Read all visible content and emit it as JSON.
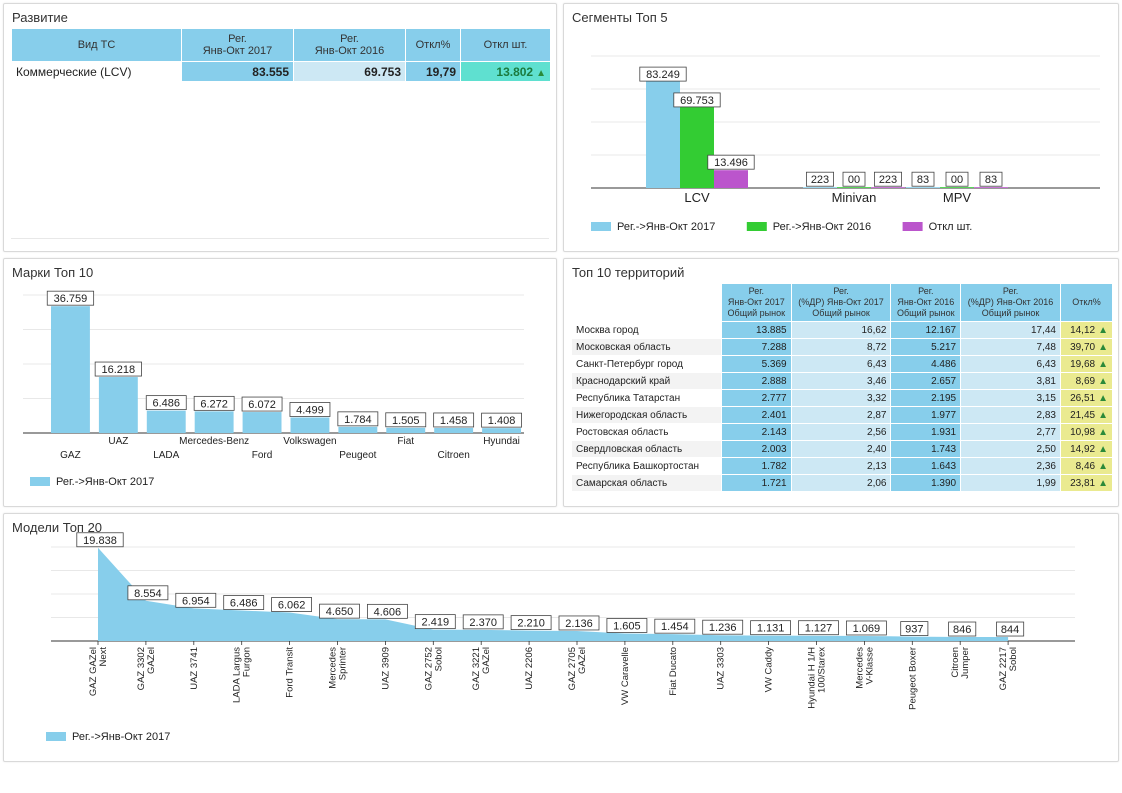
{
  "panels": {
    "razvitie": "Развитие",
    "segments": "Сегменты Топ 5",
    "brands": "Марки Топ 10",
    "territories": "Топ 10 территорий",
    "models": "Модели Топ 20"
  },
  "razvitie_table": {
    "headers": [
      "Вид ТС",
      "Рег.\nЯнв-Окт 2017",
      "Рег.\nЯнв-Окт 2016",
      "Откл%",
      "Откл шт."
    ],
    "rows": [
      {
        "name": "Коммерческие (LCV)",
        "v2017": "83.555",
        "v2016": "69.753",
        "pct": "19,79",
        "diff": "13.802"
      }
    ]
  },
  "territories_table": {
    "headers": [
      "",
      "Рег.\nЯнв-Окт 2017\nОбщий рынок",
      "Рег.\n(%ДР) Янв-Окт 2017\nОбщий рынок",
      "Рег.\nЯнв-Окт 2016\nОбщий рынок",
      "Рег.\n(%ДР) Янв-Окт 2016\nОбщий рынок",
      "Откл%"
    ],
    "rows": [
      {
        "name": "Москва город",
        "a": "13.885",
        "b": "16,62",
        "c": "12.167",
        "d": "17,44",
        "e": "14,12"
      },
      {
        "name": "Московская область",
        "a": "7.288",
        "b": "8,72",
        "c": "5.217",
        "d": "7,48",
        "e": "39,70"
      },
      {
        "name": "Санкт-Петербург город",
        "a": "5.369",
        "b": "6,43",
        "c": "4.486",
        "d": "6,43",
        "e": "19,68"
      },
      {
        "name": "Краснодарский край",
        "a": "2.888",
        "b": "3,46",
        "c": "2.657",
        "d": "3,81",
        "e": "8,69"
      },
      {
        "name": "Республика Татарстан",
        "a": "2.777",
        "b": "3,32",
        "c": "2.195",
        "d": "3,15",
        "e": "26,51"
      },
      {
        "name": "Нижегородская область",
        "a": "2.401",
        "b": "2,87",
        "c": "1.977",
        "d": "2,83",
        "e": "21,45"
      },
      {
        "name": "Ростовская область",
        "a": "2.143",
        "b": "2,56",
        "c": "1.931",
        "d": "2,77",
        "e": "10,98"
      },
      {
        "name": "Свердловская область",
        "a": "2.003",
        "b": "2,40",
        "c": "1.743",
        "d": "2,50",
        "e": "14,92"
      },
      {
        "name": "Республика Башкортостан",
        "a": "1.782",
        "b": "2,13",
        "c": "1.643",
        "d": "2,36",
        "e": "8,46"
      },
      {
        "name": "Самарская область",
        "a": "1.721",
        "b": "2,06",
        "c": "1.390",
        "d": "1,99",
        "e": "23,81"
      }
    ]
  },
  "colors": {
    "blue": "#87ceeb",
    "green": "#33cc33",
    "purple": "#bb55cc",
    "teal": "#5fe0d0",
    "yellow": "#eaea90",
    "light": "#cde8f4"
  },
  "chart_data": [
    {
      "type": "bar",
      "categories": [
        "LCV",
        "Minivan",
        "MPV"
      ],
      "series": [
        {
          "name": "Рег.->Янв-Окт 2017",
          "values": [
            83249,
            223,
            83
          ],
          "labels": [
            "83.249",
            "223",
            "83"
          ]
        },
        {
          "name": "Рег.->Янв-Окт 2016",
          "values": [
            69753,
            0,
            0
          ],
          "labels": [
            "69.753",
            "00",
            "00"
          ]
        },
        {
          "name": "Откл шт.",
          "values": [
            13496,
            223,
            83
          ],
          "labels": [
            "13.496",
            "223",
            "83"
          ]
        }
      ],
      "ylim": [
        0,
        100000
      ],
      "legend": "bottom"
    },
    {
      "type": "bar",
      "categories": [
        "GAZ",
        "UAZ",
        "LADA",
        "Mercedes-Benz",
        "Ford",
        "Volkswagen",
        "Peugeot",
        "Fiat",
        "Citroen",
        "Hyundai"
      ],
      "series": [
        {
          "name": "Рег.->Янв-Окт 2017",
          "values": [
            36759,
            16218,
            6486,
            6272,
            6072,
            4499,
            1784,
            1505,
            1458,
            1408
          ],
          "labels": [
            "36.759",
            "16.218",
            "6.486",
            "6.272",
            "6.072",
            "4.499",
            "1.784",
            "1.505",
            "1.458",
            "1.408"
          ]
        }
      ],
      "ylim": [
        0,
        40000
      ],
      "legend": "bottom-left"
    },
    {
      "type": "area",
      "categories": [
        "GAZ GAZel\nNext",
        "GAZ 3302\nGAZel",
        "UAZ 3741",
        "LADA Largus\nFurgon",
        "Ford Transit",
        "Mercedes\nSprinter",
        "UAZ 3909",
        "GAZ 2752\nSobol",
        "GAZ 3221\nGAZel",
        "UAZ 2206",
        "GAZ 2705\nGAZel",
        "VW Caravelle",
        "Fiat Ducato",
        "UAZ 3303",
        "VW Caddy",
        "Hyundai H 1/H\n100/Starex",
        "Mercedes\nV-Klasse",
        "Peugeot Boxer",
        "Citroen\nJumper",
        "GAZ 2217\nSobol"
      ],
      "series": [
        {
          "name": "Рег.->Янв-Окт 2017",
          "values": [
            19838,
            8554,
            6954,
            6486,
            6062,
            4650,
            4606,
            2419,
            2370,
            2210,
            2136,
            1605,
            1454,
            1236,
            1131,
            1127,
            1069,
            937,
            846,
            844
          ],
          "labels": [
            "19.838",
            "8.554",
            "6.954",
            "6.486",
            "6.062",
            "4.650",
            "4.606",
            "2.419",
            "2.370",
            "2.210",
            "2.136",
            "1.605",
            "1.454",
            "1.236",
            "1.131",
            "1.127",
            "1.069",
            "937",
            "846",
            "844"
          ]
        }
      ],
      "ylim": [
        0,
        20000
      ],
      "legend": "bottom-left"
    }
  ]
}
